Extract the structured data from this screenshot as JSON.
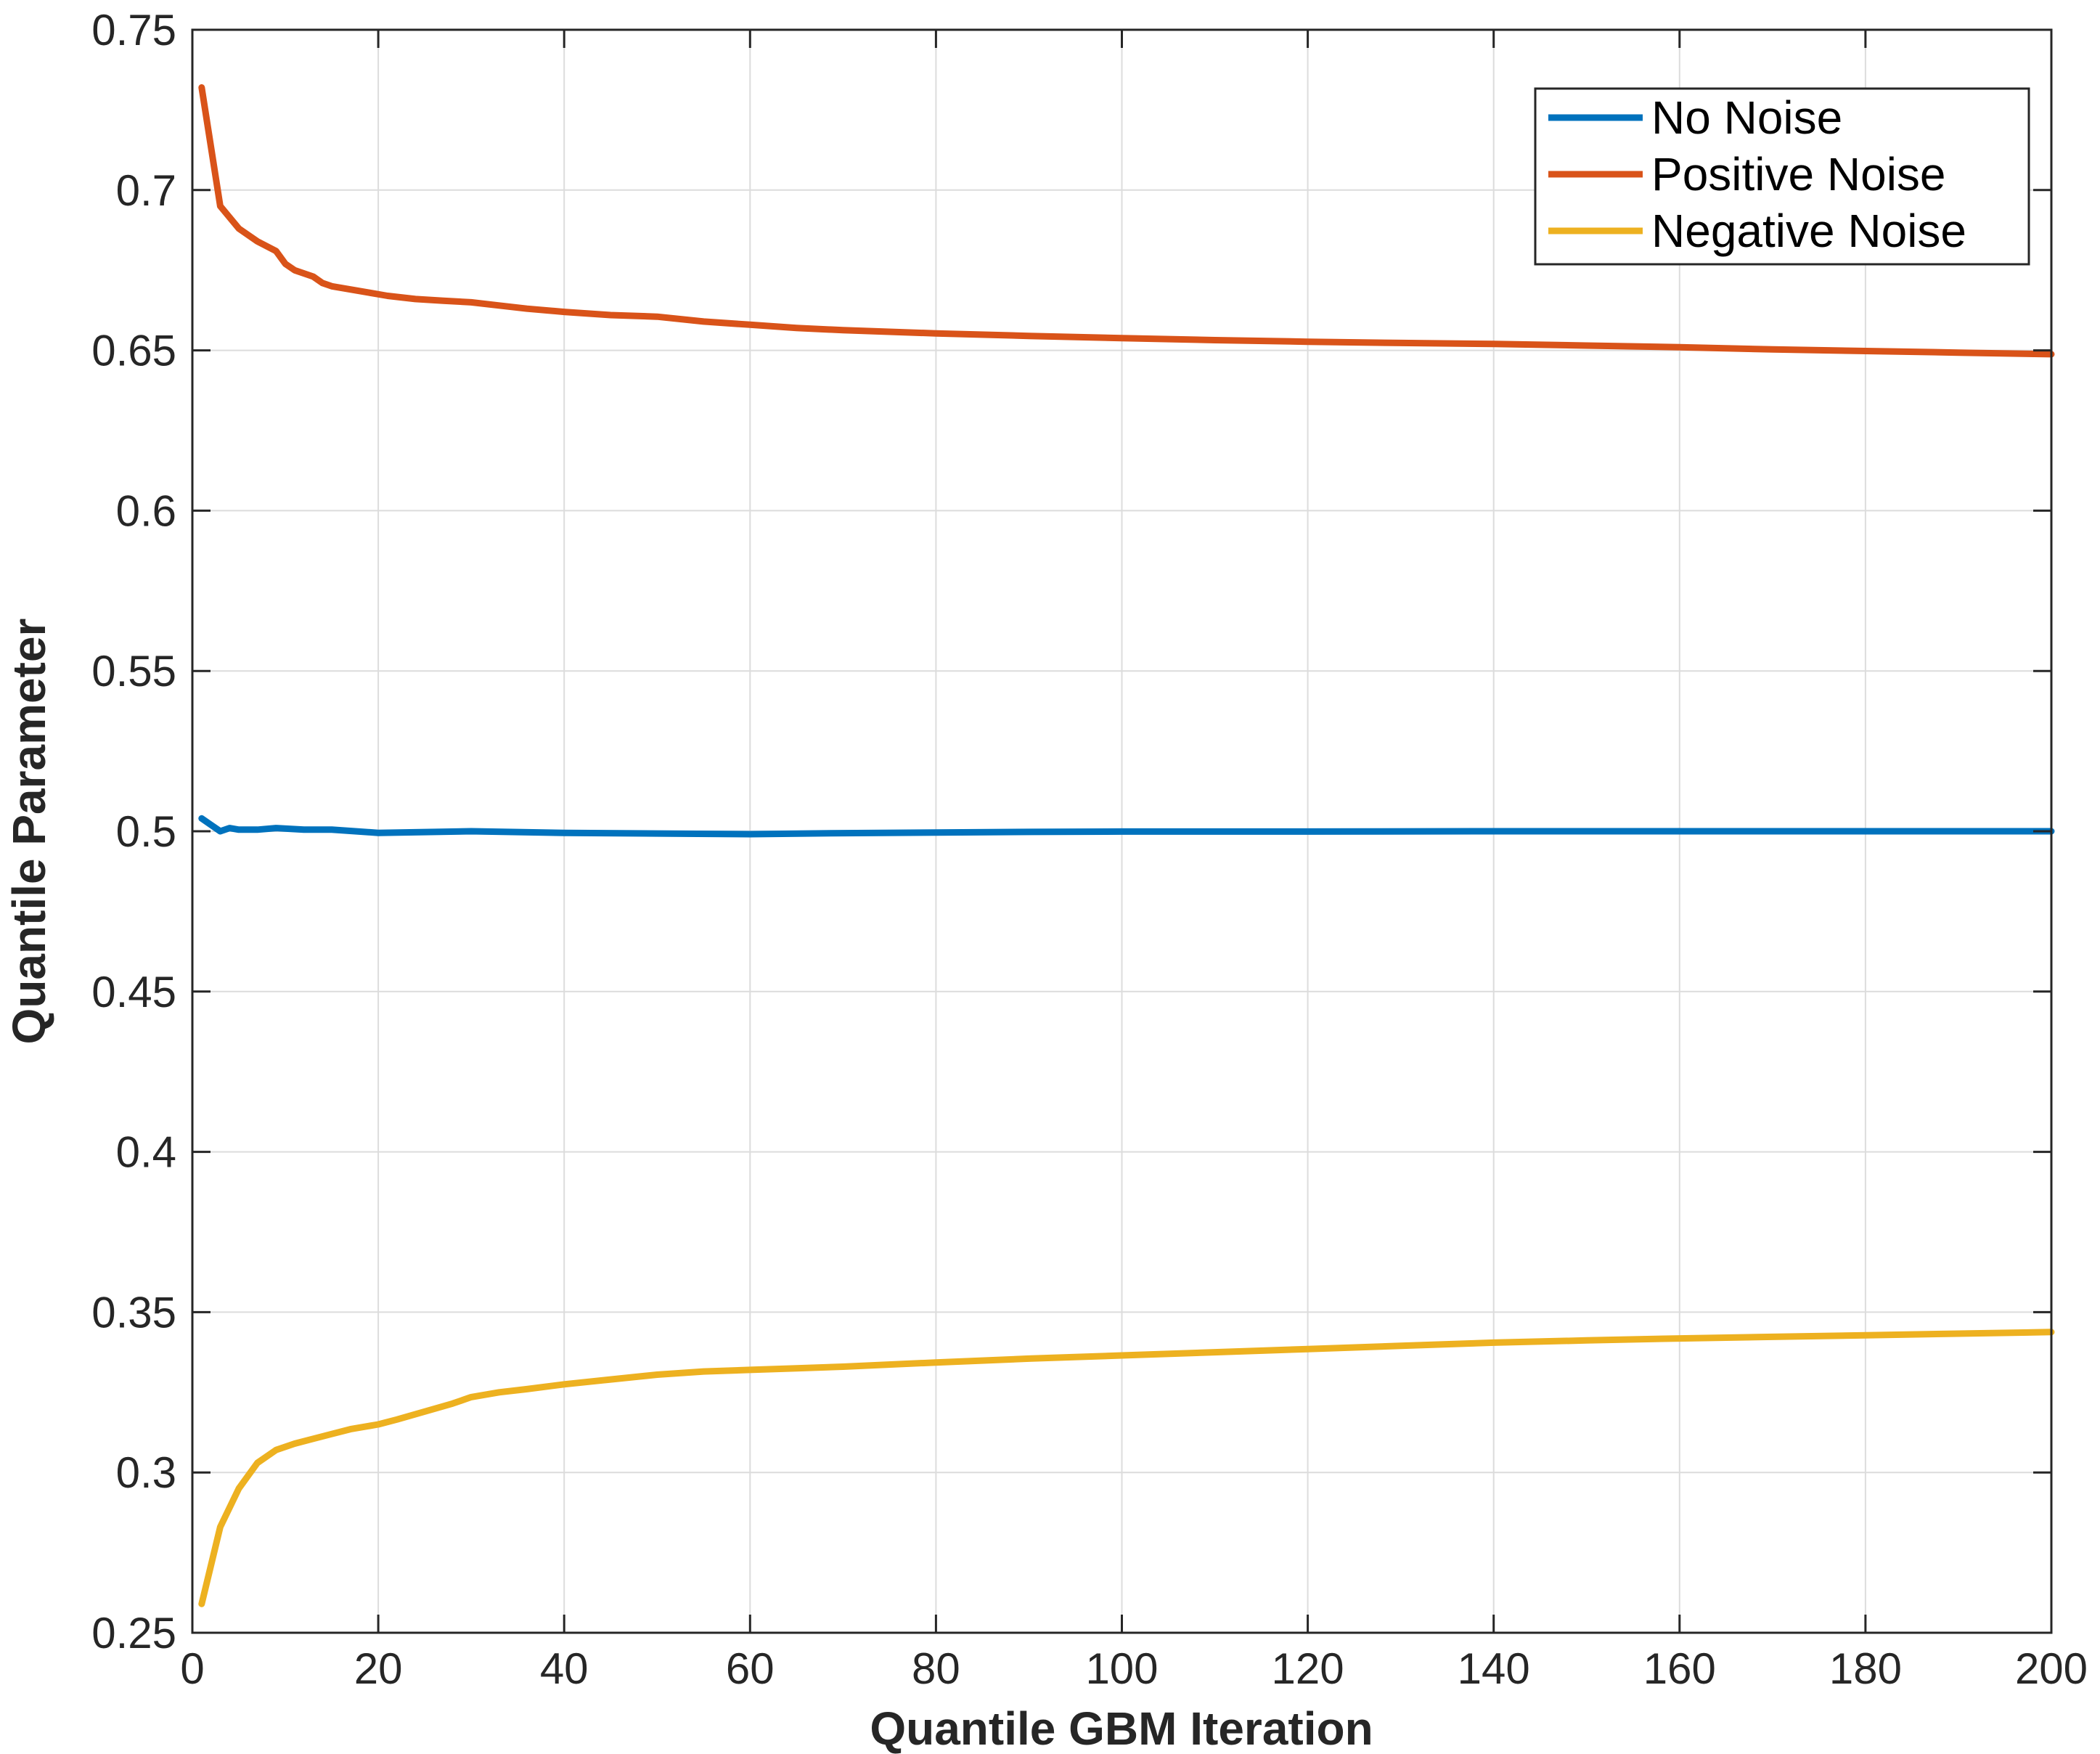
{
  "chart_data": {
    "type": "line",
    "title": "",
    "xlabel": "Quantile GBM Iteration",
    "ylabel": "Quantile Parameter",
    "xlim": [
      0,
      200
    ],
    "ylim": [
      0.25,
      0.75
    ],
    "xticks": [
      0,
      20,
      40,
      60,
      80,
      100,
      120,
      140,
      160,
      180,
      200
    ],
    "yticks": [
      0.25,
      0.3,
      0.35,
      0.4,
      0.45,
      0.5,
      0.55,
      0.6,
      0.65,
      0.7,
      0.75
    ],
    "xtick_labels": [
      "0",
      "20",
      "40",
      "60",
      "80",
      "100",
      "120",
      "140",
      "160",
      "180",
      "200"
    ],
    "ytick_labels": [
      "0.25",
      "0.3",
      "0.35",
      "0.4",
      "0.45",
      "0.5",
      "0.55",
      "0.6",
      "0.65",
      "0.7",
      "0.75"
    ],
    "grid": true,
    "legend_position": "top-right",
    "series": [
      {
        "name": "No Noise",
        "color": "#0072BD",
        "x": [
          1,
          2,
          3,
          4,
          5,
          7,
          9,
          12,
          15,
          20,
          30,
          40,
          50,
          60,
          70,
          80,
          90,
          100,
          120,
          140,
          160,
          180,
          200
        ],
        "y": [
          0.504,
          0.502,
          0.5,
          0.501,
          0.5005,
          0.5005,
          0.501,
          0.5005,
          0.5005,
          0.4995,
          0.5,
          0.4995,
          0.4993,
          0.4991,
          0.4994,
          0.4996,
          0.4998,
          0.4999,
          0.4999,
          0.5,
          0.5,
          0.5,
          0.5
        ]
      },
      {
        "name": "Positive Noise",
        "color": "#D95319",
        "x": [
          1,
          3,
          5,
          7,
          9,
          10,
          11,
          13,
          14,
          15,
          17,
          19,
          21,
          24,
          27,
          30,
          33,
          36,
          40,
          45,
          50,
          55,
          60,
          65,
          70,
          80,
          90,
          100,
          110,
          120,
          130,
          140,
          150,
          160,
          170,
          180,
          190,
          200
        ],
        "y": [
          0.732,
          0.695,
          0.688,
          0.684,
          0.681,
          0.677,
          0.675,
          0.673,
          0.671,
          0.67,
          0.669,
          0.668,
          0.667,
          0.666,
          0.6655,
          0.665,
          0.664,
          0.663,
          0.662,
          0.661,
          0.6605,
          0.659,
          0.658,
          0.657,
          0.6563,
          0.6553,
          0.6545,
          0.6538,
          0.6532,
          0.6527,
          0.6523,
          0.652,
          0.6515,
          0.651,
          0.6503,
          0.6498,
          0.6493,
          0.6488
        ]
      },
      {
        "name": "Negative Noise",
        "color": "#EDB120",
        "x": [
          1,
          3,
          5,
          7,
          9,
          11,
          13,
          15,
          17,
          20,
          22,
          25,
          28,
          30,
          33,
          36,
          40,
          45,
          50,
          55,
          60,
          65,
          70,
          80,
          90,
          100,
          110,
          120,
          130,
          140,
          150,
          160,
          170,
          180,
          190,
          200
        ],
        "y": [
          0.259,
          0.283,
          0.295,
          0.303,
          0.307,
          0.309,
          0.3105,
          0.312,
          0.3135,
          0.315,
          0.3165,
          0.319,
          0.3215,
          0.3235,
          0.325,
          0.326,
          0.3275,
          0.329,
          0.3305,
          0.3315,
          0.332,
          0.3325,
          0.333,
          0.3343,
          0.3355,
          0.3365,
          0.3375,
          0.3385,
          0.3395,
          0.3405,
          0.3412,
          0.3418,
          0.3423,
          0.3428,
          0.3433,
          0.3438
        ]
      }
    ]
  }
}
